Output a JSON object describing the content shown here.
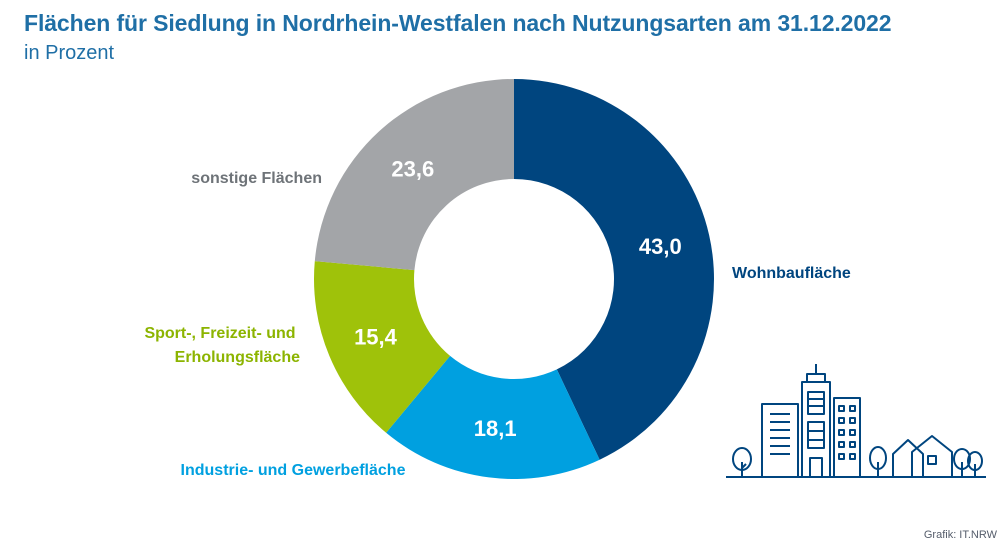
{
  "title": "Flächen für Siedlung in Nordrhein-Westfalen nach Nutzungsarten am 31.12.2022",
  "subtitle": "in Prozent",
  "credit": "Grafik: IT.NRW",
  "colors": {
    "title": "#1f6fa6",
    "wohnbau": "#00457f",
    "industrie": "#00a0e0",
    "sport": "#9fc20a",
    "sonstige": "#a3a5a8"
  },
  "illustration": "city-skyline-icon",
  "chart_data": {
    "type": "pie",
    "donut": true,
    "title": "Flächen für Siedlung in Nordrhein-Westfalen nach Nutzungsarten am 31.12.2022",
    "subtitle": "in Prozent",
    "slices": [
      {
        "label": "Wohnbaufläche",
        "value": 43.0,
        "display": "43,0",
        "color": "#00457f",
        "label_color": "#00457f",
        "label_side": "right"
      },
      {
        "label": "Industrie- und Gewerbefläche",
        "value": 18.1,
        "display": "18,1",
        "color": "#00a0e0",
        "label_color": "#00a0e0",
        "label_side": "bottom"
      },
      {
        "label": "Sport-, Freizeit- und Erholungsfläche",
        "value": 15.4,
        "display": "15,4",
        "color": "#9fc20a",
        "label_color": "#8cb400",
        "label_side": "left"
      },
      {
        "label": "sonstige Flächen",
        "value": 23.6,
        "display": "23,6",
        "color": "#a3a5a8",
        "label_color": "#6e7378",
        "label_side": "left"
      }
    ]
  }
}
